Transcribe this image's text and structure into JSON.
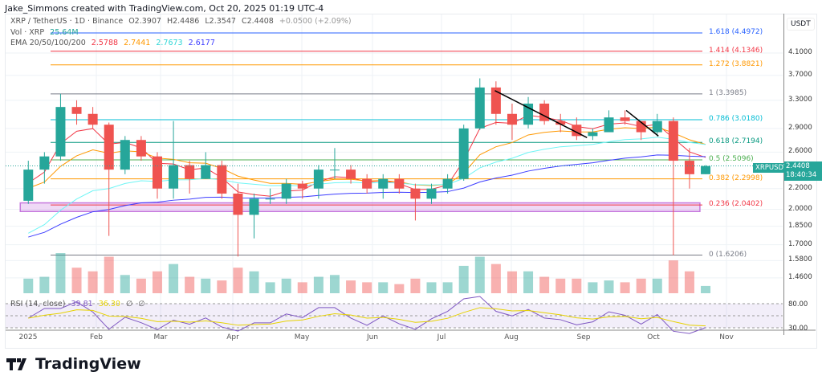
{
  "header": {
    "credit": "Jake_Simmons created with TradingView.com, Oct 20, 2025 01:19 UTC-4"
  },
  "legend": {
    "symbol": "XRP / TetherUS · 1D · Binance",
    "o": "O2.3907",
    "h": "H2.4486",
    "l": "L2.3547",
    "c": "C2.4408",
    "change": "+0.0500 (+2.09%)",
    "vol_label": "Vol · XRP",
    "vol_value": "25.64M",
    "ema_label": "EMA 20/50/100/200",
    "ema_values": [
      "2.5788",
      "2.7441",
      "2.7673",
      "2.6177"
    ],
    "ema_colors": [
      "#f23645",
      "#ff9800",
      "#6ff5f5",
      "#3d3dff"
    ],
    "rsi_label": "RSI (14, close)",
    "rsi_value": "39.81",
    "rsi_ma": "36.30",
    "rsi_extra": [
      "∅",
      "∅"
    ]
  },
  "price_axis": {
    "unit": "USDT",
    "ticks": [
      "4.1000",
      "3.7000",
      "3.3000",
      "2.9000",
      "2.6000",
      "2.2000",
      "2.0000",
      "1.8500",
      "1.7000",
      "1.5800",
      "1.4600"
    ],
    "rsi_ticks": [
      "80.00",
      "30.00"
    ]
  },
  "last_price": {
    "symbol": "XRPUSDT",
    "price": "2.4408",
    "countdown": "18:40:34"
  },
  "time_axis": [
    "2025",
    "Feb",
    "Mar",
    "Apr",
    "May",
    "Jun",
    "Jul",
    "Aug",
    "Sep",
    "Oct",
    "Nov"
  ],
  "brand": "TradingView",
  "colors": {
    "up": "#26a69a",
    "down": "#ef5350",
    "zone": "#c678dd"
  },
  "chart_data": {
    "type": "candlestick",
    "scale": "log",
    "ylim": [
      1.4,
      4.6
    ],
    "fib_levels": [
      {
        "label": "1.618 (4.4972)",
        "price": 4.4972,
        "color": "#2962ff"
      },
      {
        "label": "1.414 (4.1346)",
        "price": 4.1346,
        "color": "#f23645"
      },
      {
        "label": "1.272 (3.8821)",
        "price": 3.8821,
        "color": "#ff9800"
      },
      {
        "label": "1 (3.3985)",
        "price": 3.3985,
        "color": "#787b86"
      },
      {
        "label": "0.786 (3.0180)",
        "price": 3.018,
        "color": "#00bcd4"
      },
      {
        "label": "0.618 (2.7194)",
        "price": 2.7194,
        "color": "#089981"
      },
      {
        "label": "0.5 (2.5096)",
        "price": 2.5096,
        "color": "#4caf50"
      },
      {
        "label": "0.382 (2.2998)",
        "price": 2.2998,
        "color": "#ff9800"
      },
      {
        "label": "0.236 (2.0402)",
        "price": 2.0402,
        "color": "#f23645"
      },
      {
        "label": "0 (1.6206)",
        "price": 1.6206,
        "color": "#787b86"
      }
    ],
    "support_zone": {
      "from": "2024-12-30",
      "to": "2025-10-21",
      "low": 1.98,
      "high": 2.06
    },
    "trendlines": [
      {
        "from": [
          "2025-07-24",
          3.45
        ],
        "to": [
          "2025-09-02",
          2.78
        ]
      },
      {
        "from": [
          "2025-09-19",
          3.15
        ],
        "to": [
          "2025-10-03",
          2.8
        ]
      }
    ],
    "candles": [
      [
        "2024-12-30",
        2.08,
        2.5,
        2.05,
        2.4,
        8
      ],
      [
        "2025-01-06",
        2.4,
        2.6,
        2.25,
        2.55,
        9
      ],
      [
        "2025-01-13",
        2.55,
        3.4,
        2.5,
        3.2,
        22
      ],
      [
        "2025-01-20",
        3.2,
        3.3,
        2.95,
        3.1,
        14
      ],
      [
        "2025-01-27",
        3.1,
        3.2,
        2.9,
        2.95,
        12
      ],
      [
        "2025-02-03",
        2.95,
        2.98,
        1.77,
        2.4,
        20
      ],
      [
        "2025-02-10",
        2.4,
        2.8,
        2.35,
        2.75,
        10
      ],
      [
        "2025-02-17",
        2.75,
        2.8,
        2.5,
        2.55,
        8
      ],
      [
        "2025-02-24",
        2.55,
        2.6,
        2.1,
        2.2,
        12
      ],
      [
        "2025-03-03",
        2.2,
        3.0,
        2.1,
        2.45,
        16
      ],
      [
        "2025-03-10",
        2.45,
        2.5,
        2.15,
        2.3,
        9
      ],
      [
        "2025-03-17",
        2.3,
        2.6,
        2.3,
        2.45,
        8
      ],
      [
        "2025-03-24",
        2.45,
        2.5,
        2.1,
        2.15,
        7
      ],
      [
        "2025-03-31",
        2.15,
        2.25,
        1.61,
        1.95,
        14
      ],
      [
        "2025-04-07",
        1.95,
        2.15,
        1.75,
        2.1,
        12
      ],
      [
        "2025-04-14",
        2.1,
        2.2,
        2.05,
        2.1,
        6
      ],
      [
        "2025-04-21",
        2.1,
        2.3,
        2.05,
        2.25,
        8
      ],
      [
        "2025-04-28",
        2.25,
        2.28,
        2.1,
        2.2,
        6
      ],
      [
        "2025-05-05",
        2.2,
        2.45,
        2.1,
        2.4,
        9
      ],
      [
        "2025-05-12",
        2.4,
        2.65,
        2.3,
        2.4,
        10
      ],
      [
        "2025-05-19",
        2.4,
        2.45,
        2.25,
        2.3,
        7
      ],
      [
        "2025-05-26",
        2.3,
        2.35,
        2.15,
        2.2,
        6
      ],
      [
        "2025-06-02",
        2.2,
        2.35,
        2.1,
        2.3,
        6
      ],
      [
        "2025-06-09",
        2.3,
        2.35,
        2.15,
        2.2,
        5
      ],
      [
        "2025-06-16",
        2.2,
        2.25,
        1.9,
        2.1,
        8
      ],
      [
        "2025-06-23",
        2.1,
        2.25,
        2.05,
        2.2,
        6
      ],
      [
        "2025-06-30",
        2.2,
        2.35,
        2.15,
        2.3,
        6
      ],
      [
        "2025-07-07",
        2.3,
        2.95,
        2.28,
        2.9,
        15
      ],
      [
        "2025-07-14",
        2.9,
        3.65,
        2.88,
        3.5,
        20
      ],
      [
        "2025-07-21",
        3.5,
        3.6,
        2.95,
        3.1,
        16
      ],
      [
        "2025-07-28",
        3.1,
        3.25,
        2.75,
        2.95,
        12
      ],
      [
        "2025-08-04",
        2.95,
        3.35,
        2.9,
        3.25,
        12
      ],
      [
        "2025-08-11",
        3.25,
        3.3,
        2.95,
        3.0,
        9
      ],
      [
        "2025-08-18",
        3.0,
        3.1,
        2.85,
        2.95,
        8
      ],
      [
        "2025-08-25",
        2.95,
        3.05,
        2.75,
        2.8,
        8
      ],
      [
        "2025-09-01",
        2.8,
        2.9,
        2.75,
        2.85,
        6
      ],
      [
        "2025-09-08",
        2.85,
        3.15,
        2.85,
        3.05,
        7
      ],
      [
        "2025-09-15",
        3.05,
        3.15,
        2.95,
        3.0,
        6
      ],
      [
        "2025-09-22",
        3.0,
        3.0,
        2.75,
        2.85,
        8
      ],
      [
        "2025-09-29",
        2.85,
        3.1,
        2.8,
        3.0,
        8
      ],
      [
        "2025-10-06",
        3.0,
        3.05,
        1.62,
        2.5,
        18
      ],
      [
        "2025-10-13",
        2.5,
        2.65,
        2.2,
        2.35,
        12
      ],
      [
        "2025-10-20",
        2.35,
        2.45,
        2.35,
        2.44,
        4
      ]
    ]
  }
}
